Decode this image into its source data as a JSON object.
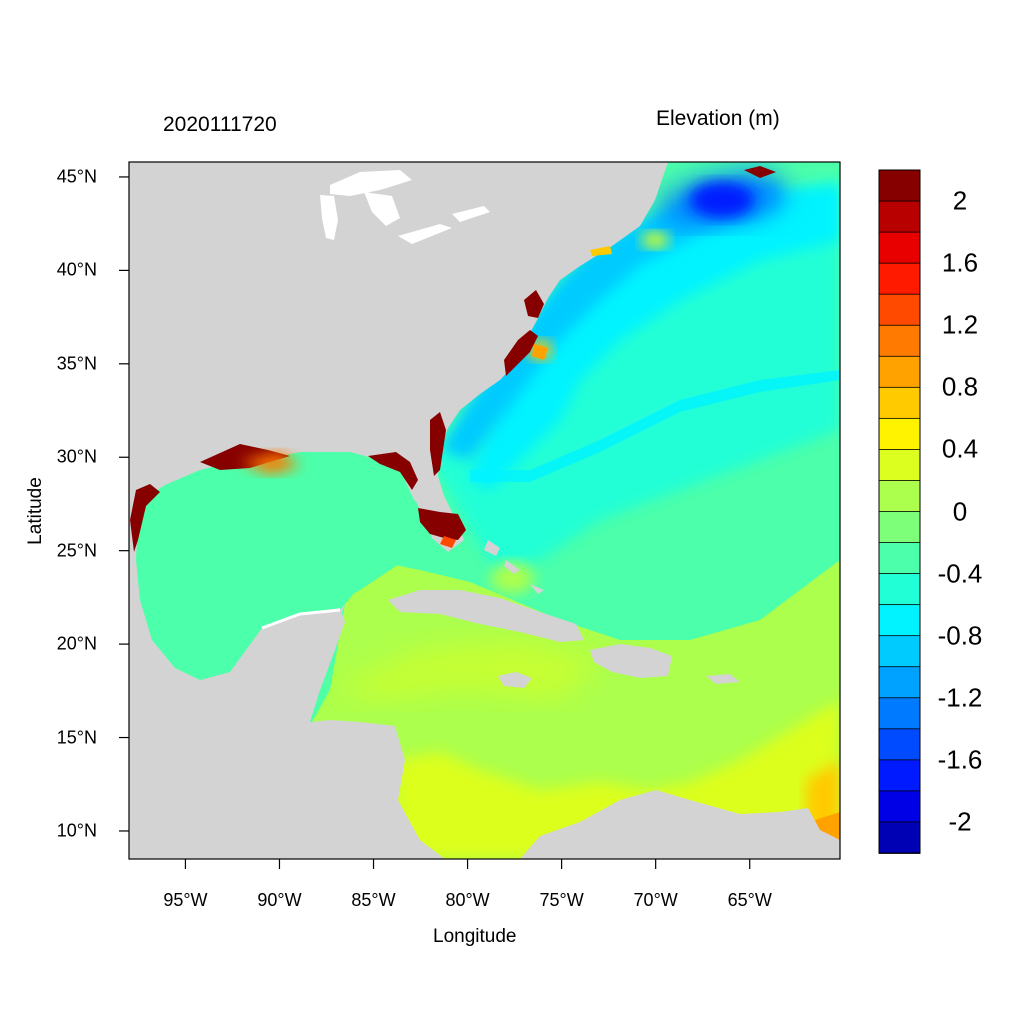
{
  "figure": {
    "title_left": "2020111720",
    "title_right": "Elevation (m)",
    "xlabel": "Longitude",
    "ylabel": "Latitude"
  },
  "axes": {
    "lat_ticks": [
      "45°N",
      "40°N",
      "35°N",
      "30°N",
      "25°N",
      "20°N",
      "15°N",
      "10°N"
    ],
    "lat_values": [
      45,
      40,
      35,
      30,
      25,
      20,
      15,
      10
    ],
    "lon_ticks": [
      "95°W",
      "90°W",
      "85°W",
      "80°W",
      "75°W",
      "70°W",
      "65°W"
    ],
    "lon_values": [
      -95,
      -90,
      -85,
      -80,
      -75,
      -70,
      -65
    ],
    "lon_range": [
      -98,
      -60.2
    ],
    "lat_range": [
      8.5,
      45.8
    ]
  },
  "colorbar": {
    "tick_labels": [
      "2",
      "1.6",
      "1.2",
      "0.8",
      "0.4",
      "0",
      "-0.4",
      "-0.8",
      "-1.2",
      "-1.6",
      "-2"
    ],
    "colors": [
      "#870000",
      "#b80000",
      "#e80000",
      "#ff1a00",
      "#ff4a00",
      "#ff7a00",
      "#ffa200",
      "#ffcb00",
      "#fff300",
      "#dcff1f",
      "#acff4d",
      "#7dff7a",
      "#4cffaa",
      "#20ffd6",
      "#00f3ff",
      "#00cbff",
      "#00a2ff",
      "#007aff",
      "#004aff",
      "#001aff",
      "#0000e6",
      "#0000b5"
    ],
    "range": [
      -2.2,
      2.2
    ]
  },
  "map": {
    "land_color": "#d3d3d3",
    "ocean_base_color": "#4cffaa"
  }
}
